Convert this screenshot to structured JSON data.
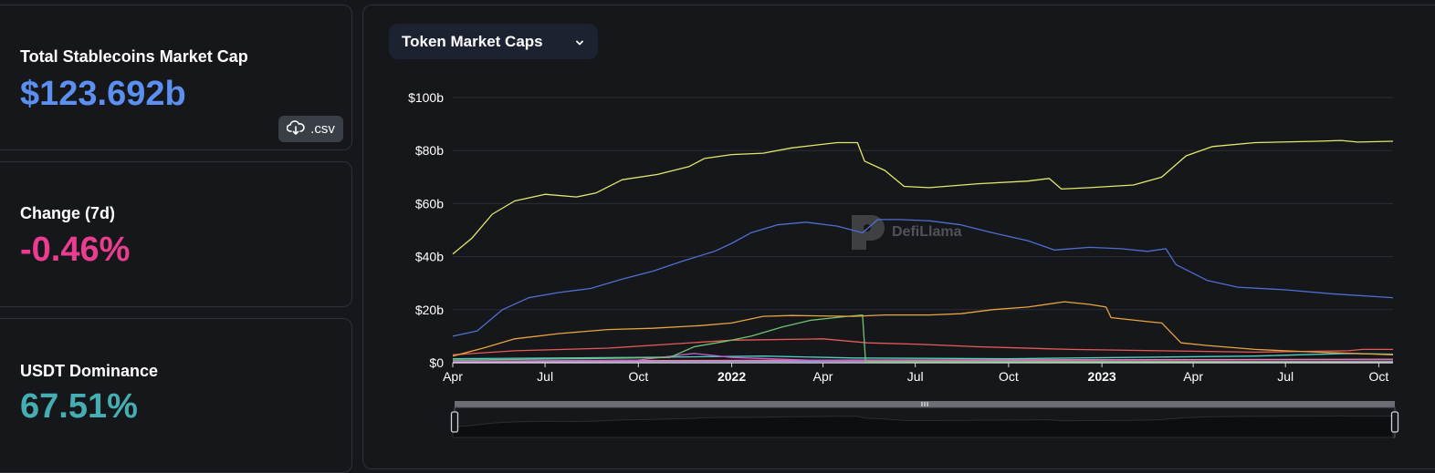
{
  "stats": {
    "market_cap": {
      "label": "Total Stablecoins Market Cap",
      "value": "$123.692b",
      "color": "#5b8ff0"
    },
    "change": {
      "label": "Change (7d)",
      "value": "-0.46%",
      "color": "#ea3d8f"
    },
    "dominance": {
      "label": "USDT Dominance",
      "value": "67.51%",
      "color": "#45aeb2"
    }
  },
  "csv_button": {
    "label": ".csv",
    "icon": "cloud-download-icon"
  },
  "dropdown": {
    "label": "Token Market Caps",
    "icon": "chevron-down-icon"
  },
  "watermark": "DefiLlama",
  "chart_data": {
    "type": "line",
    "title": "",
    "xlabel": "",
    "ylabel": "",
    "ylim": [
      0,
      100
    ],
    "y_ticks": [
      "$0",
      "$20b",
      "$40b",
      "$60b",
      "$80b",
      "$100b"
    ],
    "y_tick_values": [
      0,
      20,
      40,
      60,
      80,
      100
    ],
    "x_ticks": [
      {
        "label": "Apr",
        "date": "2021-04-01",
        "bold": false
      },
      {
        "label": "Jul",
        "date": "2021-07-01",
        "bold": false
      },
      {
        "label": "Oct",
        "date": "2021-10-01",
        "bold": false
      },
      {
        "label": "2022",
        "date": "2022-01-01",
        "bold": true
      },
      {
        "label": "Apr",
        "date": "2022-04-01",
        "bold": false
      },
      {
        "label": "Jul",
        "date": "2022-07-01",
        "bold": false
      },
      {
        "label": "Oct",
        "date": "2022-10-01",
        "bold": false
      },
      {
        "label": "2023",
        "date": "2023-01-01",
        "bold": true
      },
      {
        "label": "Apr",
        "date": "2023-04-01",
        "bold": false
      },
      {
        "label": "Jul",
        "date": "2023-07-01",
        "bold": false
      },
      {
        "label": "Oct",
        "date": "2023-10-01",
        "bold": false
      }
    ],
    "x_range": [
      "2021-04-01",
      "2023-10-15"
    ],
    "grid": true,
    "series": [
      {
        "color": "#e3e86a",
        "points": [
          [
            "2021-04-01",
            41
          ],
          [
            "2021-04-20",
            47
          ],
          [
            "2021-05-10",
            56
          ],
          [
            "2021-06-01",
            61
          ],
          [
            "2021-07-01",
            63.5
          ],
          [
            "2021-08-01",
            62.5
          ],
          [
            "2021-08-20",
            64
          ],
          [
            "2021-09-15",
            69
          ],
          [
            "2021-10-20",
            71
          ],
          [
            "2021-11-20",
            74
          ],
          [
            "2021-12-05",
            77
          ],
          [
            "2022-01-01",
            78.5
          ],
          [
            "2022-02-01",
            79
          ],
          [
            "2022-03-01",
            81
          ],
          [
            "2022-04-15",
            83
          ],
          [
            "2022-05-05",
            83
          ],
          [
            "2022-05-12",
            76
          ],
          [
            "2022-06-01",
            72.5
          ],
          [
            "2022-06-20",
            66.5
          ],
          [
            "2022-07-15",
            66
          ],
          [
            "2022-09-01",
            67.5
          ],
          [
            "2022-10-20",
            68.5
          ],
          [
            "2022-11-10",
            69.5
          ],
          [
            "2022-11-22",
            65.5
          ],
          [
            "2022-12-20",
            66
          ],
          [
            "2023-02-01",
            67
          ],
          [
            "2023-03-01",
            70
          ],
          [
            "2023-03-25",
            78
          ],
          [
            "2023-04-20",
            81.5
          ],
          [
            "2023-06-01",
            83
          ],
          [
            "2023-08-01",
            83.5
          ],
          [
            "2023-08-25",
            83.8
          ],
          [
            "2023-09-10",
            83.2
          ],
          [
            "2023-10-15",
            83.5
          ]
        ]
      },
      {
        "color": "#4c6fd1",
        "points": [
          [
            "2021-04-01",
            10
          ],
          [
            "2021-04-25",
            12
          ],
          [
            "2021-05-20",
            20
          ],
          [
            "2021-06-15",
            24.5
          ],
          [
            "2021-07-15",
            26.5
          ],
          [
            "2021-08-15",
            28
          ],
          [
            "2021-09-15",
            31.5
          ],
          [
            "2021-10-15",
            34.5
          ],
          [
            "2021-11-15",
            38.5
          ],
          [
            "2021-12-15",
            42
          ],
          [
            "2022-01-01",
            45
          ],
          [
            "2022-01-20",
            49
          ],
          [
            "2022-02-15",
            52
          ],
          [
            "2022-03-15",
            53
          ],
          [
            "2022-04-15",
            51.5
          ],
          [
            "2022-05-10",
            49
          ],
          [
            "2022-05-25",
            54
          ],
          [
            "2022-06-15",
            54
          ],
          [
            "2022-07-15",
            53.5
          ],
          [
            "2022-08-15",
            52
          ],
          [
            "2022-09-15",
            49
          ],
          [
            "2022-10-20",
            46
          ],
          [
            "2022-11-15",
            42.5
          ],
          [
            "2022-12-20",
            43.5
          ],
          [
            "2023-01-20",
            43
          ],
          [
            "2023-02-15",
            42
          ],
          [
            "2023-03-05",
            43
          ],
          [
            "2023-03-15",
            37
          ],
          [
            "2023-04-15",
            31
          ],
          [
            "2023-05-15",
            28.5
          ],
          [
            "2023-07-01",
            27.5
          ],
          [
            "2023-08-15",
            26
          ],
          [
            "2023-10-15",
            24.5
          ]
        ]
      },
      {
        "color": "#e8a53c",
        "points": [
          [
            "2021-04-01",
            2.5
          ],
          [
            "2021-05-01",
            5.5
          ],
          [
            "2021-06-01",
            9
          ],
          [
            "2021-07-15",
            11
          ],
          [
            "2021-09-01",
            12.5
          ],
          [
            "2021-10-15",
            13
          ],
          [
            "2021-12-01",
            14
          ],
          [
            "2022-01-01",
            15
          ],
          [
            "2022-02-01",
            17.5
          ],
          [
            "2022-03-01",
            17.8
          ],
          [
            "2022-05-01",
            17.5
          ],
          [
            "2022-06-01",
            18
          ],
          [
            "2022-07-15",
            18
          ],
          [
            "2022-08-15",
            18.5
          ],
          [
            "2022-09-15",
            20
          ],
          [
            "2022-10-20",
            21
          ],
          [
            "2022-11-25",
            23
          ],
          [
            "2022-12-20",
            22
          ],
          [
            "2023-01-05",
            21
          ],
          [
            "2023-01-10",
            17
          ],
          [
            "2023-02-15",
            15.5
          ],
          [
            "2023-03-01",
            15
          ],
          [
            "2023-03-20",
            7.5
          ],
          [
            "2023-04-15",
            6.5
          ],
          [
            "2023-06-01",
            5
          ],
          [
            "2023-08-01",
            4
          ],
          [
            "2023-10-15",
            3
          ]
        ]
      },
      {
        "color": "#6fc56f",
        "points": [
          [
            "2021-04-01",
            1
          ],
          [
            "2021-08-01",
            1.5
          ],
          [
            "2021-11-01",
            2
          ],
          [
            "2021-11-25",
            6
          ],
          [
            "2021-12-25",
            8
          ],
          [
            "2022-01-20",
            10
          ],
          [
            "2022-02-20",
            13.5
          ],
          [
            "2022-03-20",
            16
          ],
          [
            "2022-04-25",
            17.5
          ],
          [
            "2022-05-10",
            18
          ],
          [
            "2022-05-13",
            0.5
          ],
          [
            "2023-10-15",
            0.3
          ]
        ]
      },
      {
        "color": "#e85a5a",
        "points": [
          [
            "2021-04-01",
            3
          ],
          [
            "2021-06-01",
            4.5
          ],
          [
            "2021-09-01",
            5.5
          ],
          [
            "2021-11-01",
            7
          ],
          [
            "2022-01-01",
            8.5
          ],
          [
            "2022-04-01",
            9
          ],
          [
            "2022-05-15",
            7.5
          ],
          [
            "2022-07-01",
            7
          ],
          [
            "2022-09-01",
            6
          ],
          [
            "2022-12-01",
            5
          ],
          [
            "2023-03-01",
            4.5
          ],
          [
            "2023-06-01",
            4
          ],
          [
            "2023-09-01",
            4.5
          ],
          [
            "2023-09-15",
            5
          ],
          [
            "2023-10-15",
            5
          ]
        ]
      },
      {
        "color": "#c95fd1",
        "points": [
          [
            "2021-04-01",
            0.6
          ],
          [
            "2021-10-01",
            1
          ],
          [
            "2021-11-25",
            3.5
          ],
          [
            "2022-01-01",
            2
          ],
          [
            "2022-04-01",
            0.8
          ],
          [
            "2023-10-15",
            0.5
          ]
        ]
      },
      {
        "color": "#4fd1c5",
        "points": [
          [
            "2021-04-01",
            1.5
          ],
          [
            "2021-10-01",
            2
          ],
          [
            "2022-02-01",
            2.5
          ],
          [
            "2022-05-01",
            1.8
          ],
          [
            "2022-10-01",
            1.5
          ],
          [
            "2023-06-01",
            2.5
          ],
          [
            "2023-09-01",
            3.5
          ],
          [
            "2023-10-15",
            3.2
          ]
        ]
      },
      {
        "color": "#e87fa8",
        "points": [
          [
            "2021-04-01",
            0.5
          ],
          [
            "2021-10-01",
            0.8
          ],
          [
            "2022-05-01",
            1
          ],
          [
            "2023-05-01",
            1.2
          ],
          [
            "2023-10-15",
            1.3
          ]
        ]
      },
      {
        "color": "#9d8ef0",
        "points": [
          [
            "2021-04-01",
            0.3
          ],
          [
            "2022-01-01",
            0.6
          ],
          [
            "2022-06-01",
            0.5
          ],
          [
            "2023-10-15",
            0.6
          ]
        ]
      }
    ],
    "brush": {
      "range": [
        "2021-04-01",
        "2023-10-15"
      ]
    }
  }
}
